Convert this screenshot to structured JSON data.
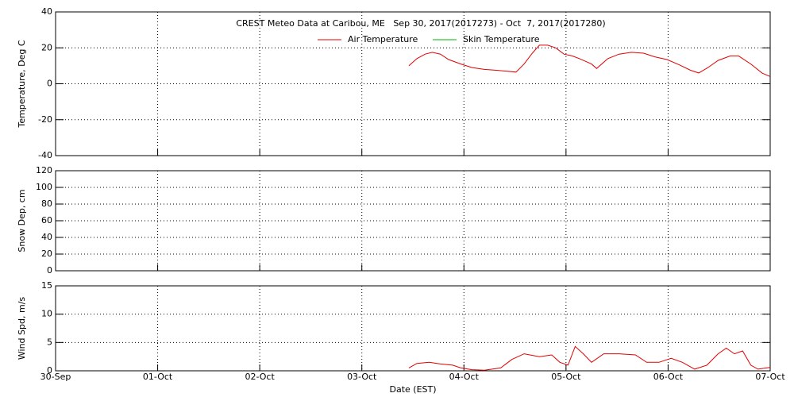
{
  "chart_data": [
    {
      "type": "line",
      "title": "CREST Meteo Data at Caribou, ME   Sep 30, 2017(2017273) - Oct  7, 2017(2017280)",
      "y_label": "Temperature, Deg C",
      "xlim": [
        0,
        7
      ],
      "xticks": [
        0,
        1,
        2,
        3,
        4,
        5,
        6,
        7
      ],
      "ylim": [
        -40,
        40
      ],
      "yticks": [
        -40,
        -20,
        0,
        20,
        40
      ],
      "grid": true,
      "x": [
        3.46,
        3.54,
        3.62,
        3.69,
        3.77,
        3.85,
        3.97,
        4.08,
        4.2,
        4.32,
        4.51,
        4.59,
        4.67,
        4.74,
        4.82,
        4.9,
        4.98,
        5.06,
        5.13,
        5.25,
        5.3,
        5.41,
        5.52,
        5.64,
        5.76,
        5.87,
        5.99,
        6.11,
        6.22,
        6.3,
        6.39,
        6.49,
        6.61,
        6.69,
        6.81,
        6.92,
        7
      ],
      "series": [
        {
          "name": "Air Temperature",
          "color": "#e00000",
          "values": [
            10,
            14,
            16.5,
            17.5,
            16.5,
            13.5,
            11,
            9,
            8,
            7.5,
            6.5,
            11,
            17,
            21.5,
            21.5,
            20,
            16.5,
            15.5,
            14,
            11,
            8.5,
            14,
            16.5,
            17.5,
            17,
            15,
            13.5,
            10.5,
            7.5,
            6,
            9,
            13,
            15.5,
            15.5,
            11,
            6,
            4
          ]
        },
        {
          "name": "Skin Temperature",
          "color": "#00b000",
          "values": [
            null,
            null,
            null,
            null,
            null,
            null,
            null,
            null,
            null,
            null,
            null,
            null,
            null,
            null,
            null,
            null,
            null,
            null,
            null,
            null,
            null,
            null,
            null,
            null,
            null,
            null,
            null,
            null,
            null,
            null,
            null,
            null,
            null,
            null,
            null,
            null,
            null
          ]
        }
      ]
    },
    {
      "type": "line",
      "y_label": "Snow Dep, cm",
      "xlim": [
        0,
        7
      ],
      "xticks": [
        0,
        1,
        2,
        3,
        4,
        5,
        6,
        7
      ],
      "ylim": [
        0,
        120
      ],
      "yticks": [
        0,
        20,
        40,
        60,
        80,
        100,
        120
      ],
      "grid": true
    },
    {
      "type": "line",
      "y_label": "Wind Spd, m/s",
      "x_label": "Date (EST)",
      "xlim": [
        0,
        7
      ],
      "xticks": [
        {
          "value": 0,
          "label": "30-Sep"
        },
        {
          "value": 1,
          "label": "01-Oct"
        },
        {
          "value": 2,
          "label": "02-Oct"
        },
        {
          "value": 3,
          "label": "03-Oct"
        },
        {
          "value": 4,
          "label": "04-Oct"
        },
        {
          "value": 5,
          "label": "05-Oct"
        },
        {
          "value": 6,
          "label": "06-Oct"
        },
        {
          "value": 7,
          "label": "07-Oct"
        }
      ],
      "ylim": [
        0,
        15
      ],
      "yticks": [
        0,
        5,
        10,
        15
      ],
      "grid": true,
      "x": [
        3.46,
        3.54,
        3.66,
        3.77,
        3.89,
        3.97,
        4.08,
        4.2,
        4.36,
        4.47,
        4.59,
        4.74,
        4.86,
        4.94,
        5.02,
        5.09,
        5.17,
        5.25,
        5.37,
        5.52,
        5.68,
        5.79,
        5.91,
        6.03,
        6.14,
        6.26,
        6.38,
        6.49,
        6.57,
        6.65,
        6.73,
        6.81,
        6.88,
        7
      ],
      "color": "#e00000",
      "values": [
        0.5,
        1.3,
        1.5,
        1.2,
        1,
        0.5,
        0.2,
        0.1,
        0.5,
        2,
        3,
        2.5,
        2.8,
        1.5,
        1,
        4.3,
        3,
        1.5,
        3,
        3,
        2.8,
        1.5,
        1.5,
        2.2,
        1.5,
        0.3,
        1,
        3,
        4,
        3,
        3.5,
        1,
        0.3,
        0.6
      ]
    }
  ]
}
